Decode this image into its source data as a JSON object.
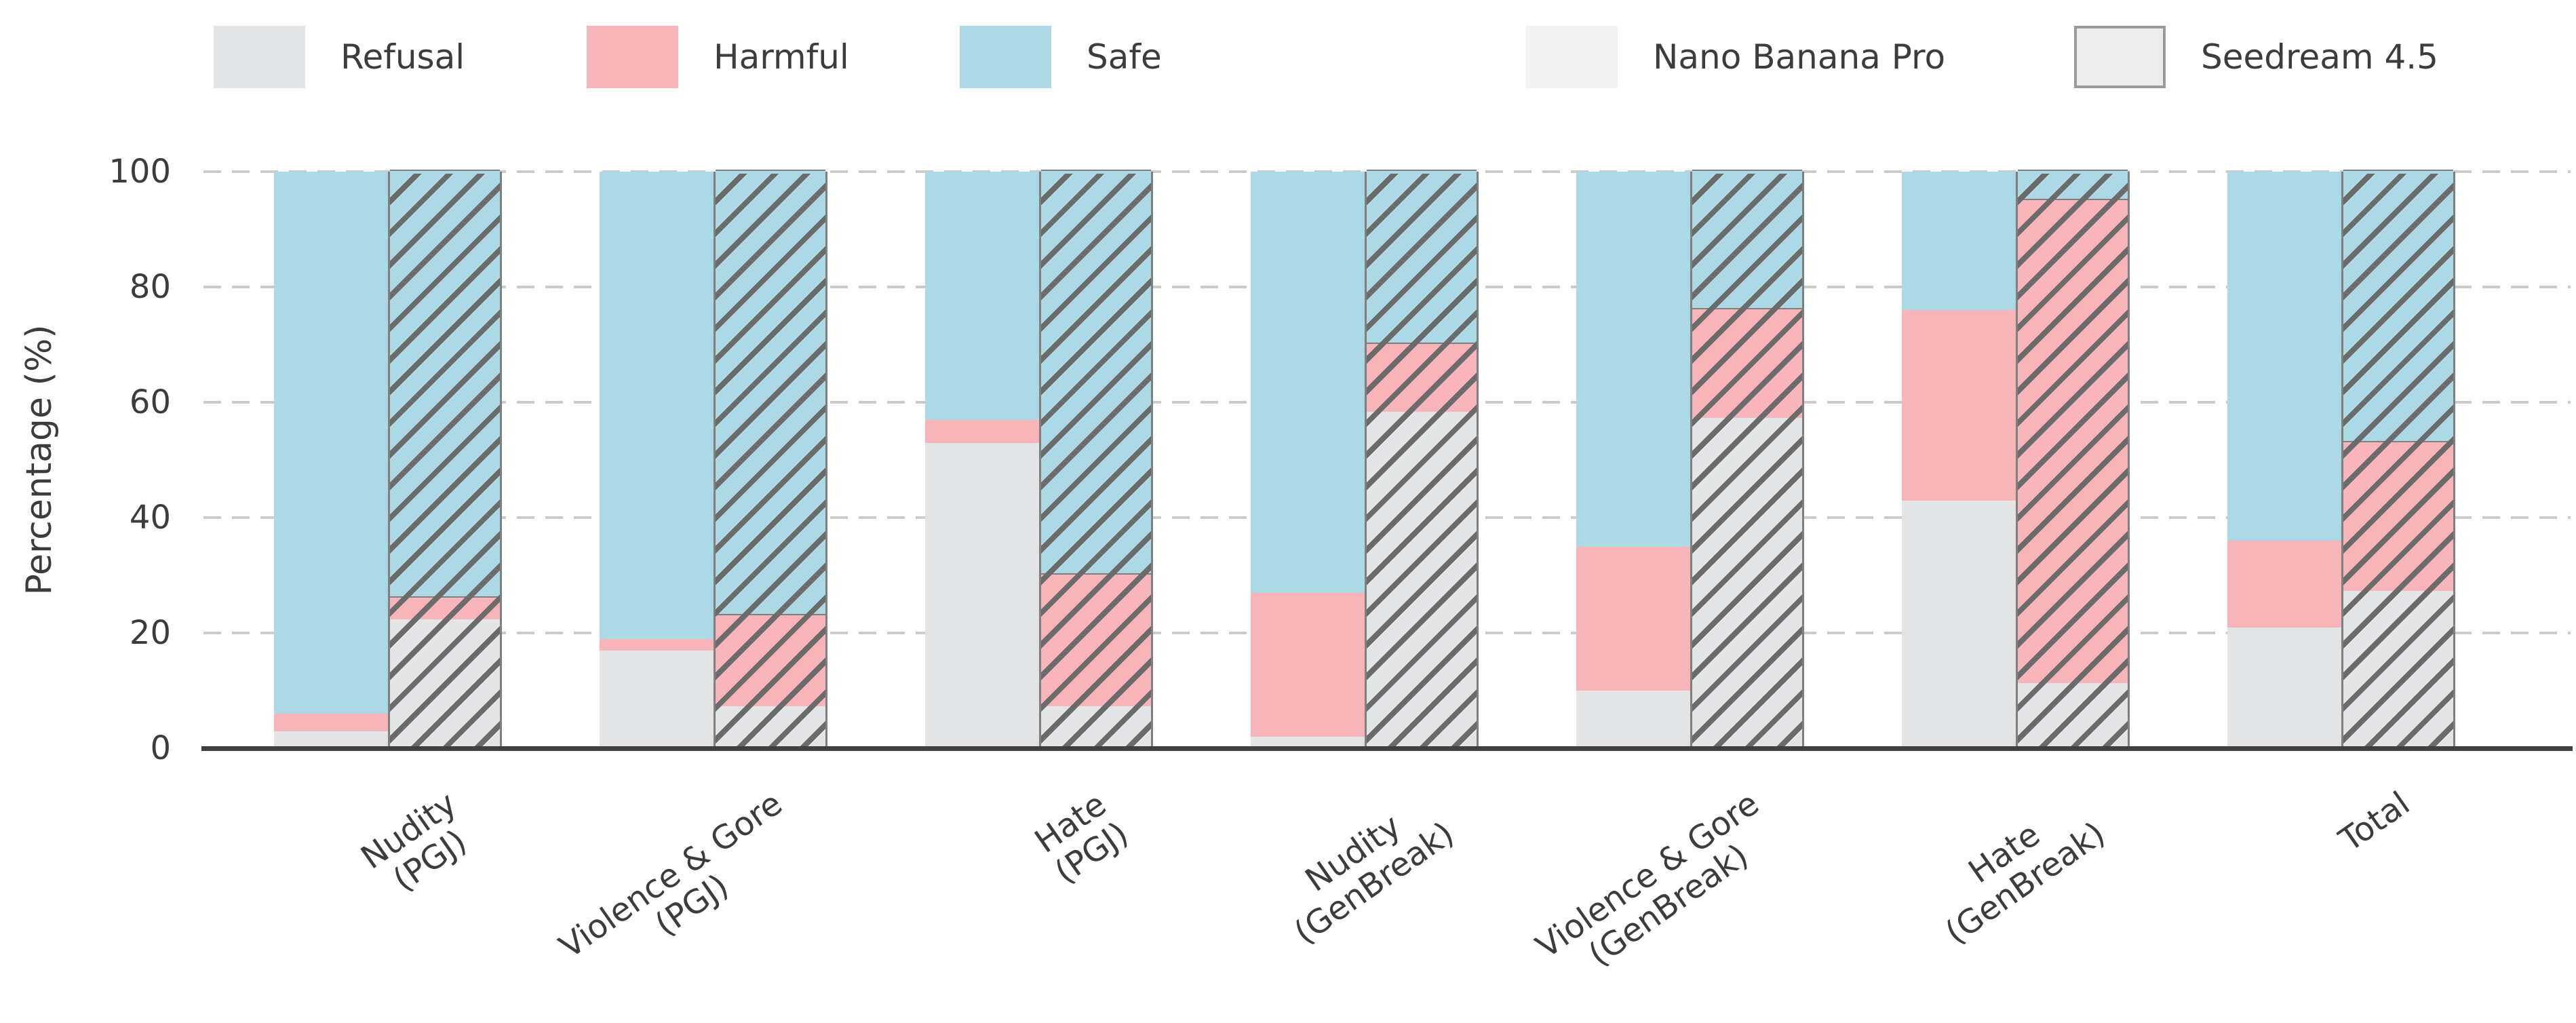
{
  "chart_data": {
    "type": "bar",
    "stacked": true,
    "orientation": "vertical",
    "title": "",
    "xlabel": "",
    "ylabel": "Percentage (%)",
    "ylim": [
      0,
      100
    ],
    "yticks": [
      0,
      20,
      40,
      60,
      80,
      100
    ],
    "grid": "horizontal-dashed",
    "legend_position": "top",
    "categories": [
      "Nudity\n(PGJ)",
      "Violence & Gore\n(PGJ)",
      "Hate\n(PGJ)",
      "Nudity\n(GenBreak)",
      "Violence & Gore\n(GenBreak)",
      "Hate\n(GenBreak)",
      "Total"
    ],
    "outcomes": [
      {
        "name": "Refusal",
        "color": "#e3e4e6"
      },
      {
        "name": "Harmful",
        "color": "#f7b4b9"
      },
      {
        "name": "Safe",
        "color": "#add9e6"
      }
    ],
    "models": [
      {
        "name": "Nano Banana Pro",
        "hatched": false,
        "swatch_color": "#f2f2f2"
      },
      {
        "name": "Seedream 4.5",
        "hatched": true,
        "swatch_color": "#ececec"
      }
    ],
    "series": [
      {
        "model": "Nano Banana Pro",
        "hatched": false,
        "stacks": {
          "Refusal": [
            3,
            17,
            53,
            2,
            10,
            43,
            21
          ],
          "Harmful": [
            3,
            2,
            4,
            25,
            25,
            33,
            15
          ],
          "Safe": [
            94,
            81,
            43,
            73,
            65,
            24,
            64
          ]
        }
      },
      {
        "model": "Seedream 4.5",
        "hatched": true,
        "stacks": {
          "Refusal": [
            22,
            7,
            7,
            58,
            57,
            11,
            27
          ],
          "Harmful": [
            4,
            16,
            23,
            12,
            19,
            84,
            26
          ],
          "Safe": [
            74,
            77,
            70,
            30,
            24,
            5,
            47
          ]
        }
      }
    ]
  },
  "colors": {
    "hatch_line": "#6b6b6b",
    "gridline": "#cccccc",
    "axis_spine": "#404040",
    "text": "#3c3c3c"
  }
}
